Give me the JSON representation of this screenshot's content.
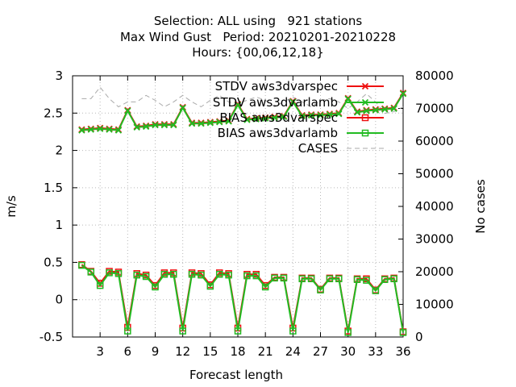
{
  "title_lines": [
    "Selection: ALL using   921 stations",
    "Max Wind Gust   Period: 20210201-20210228",
    "Hours: {00,06,12,18}"
  ],
  "chart_data": {
    "type": "line",
    "xlabel": "Forecast length",
    "ylabel": "m/s",
    "y2label": "No cases",
    "xlim": [
      0,
      36
    ],
    "ylim": [
      -0.5,
      3
    ],
    "y2lim": [
      0,
      80000
    ],
    "xticks": [
      3,
      6,
      9,
      12,
      15,
      18,
      21,
      24,
      27,
      30,
      33,
      36
    ],
    "yticks": [
      -0.5,
      0,
      0.5,
      1,
      1.5,
      2,
      2.5,
      3
    ],
    "y2ticks": [
      0,
      10000,
      20000,
      30000,
      40000,
      50000,
      60000,
      70000,
      80000
    ],
    "grid": true,
    "legend_position": "top-right",
    "x": [
      1,
      2,
      3,
      4,
      5,
      6,
      7,
      8,
      9,
      10,
      11,
      12,
      13,
      14,
      15,
      16,
      17,
      18,
      19,
      20,
      21,
      22,
      23,
      24,
      25,
      26,
      27,
      28,
      29,
      30,
      31,
      32,
      33,
      34,
      35,
      36
    ],
    "series": [
      {
        "name": "STDV aws3dvarspec",
        "axis": "y1",
        "color": "#ee1111",
        "marker": "x",
        "values": [
          2.28,
          2.29,
          2.3,
          2.29,
          2.28,
          2.54,
          2.32,
          2.33,
          2.35,
          2.35,
          2.35,
          2.58,
          2.37,
          2.37,
          2.38,
          2.39,
          2.4,
          2.62,
          2.42,
          2.43,
          2.44,
          2.45,
          2.46,
          2.66,
          2.47,
          2.48,
          2.48,
          2.49,
          2.5,
          2.7,
          2.52,
          2.54,
          2.55,
          2.56,
          2.57,
          2.77
        ]
      },
      {
        "name": "STDV aws3dvarlamb",
        "axis": "y1",
        "color": "#22bb22",
        "marker": "x",
        "values": [
          2.27,
          2.28,
          2.29,
          2.28,
          2.27,
          2.53,
          2.31,
          2.32,
          2.34,
          2.34,
          2.34,
          2.57,
          2.36,
          2.36,
          2.37,
          2.38,
          2.39,
          2.61,
          2.41,
          2.42,
          2.43,
          2.44,
          2.45,
          2.65,
          2.46,
          2.47,
          2.47,
          2.48,
          2.49,
          2.69,
          2.51,
          2.53,
          2.54,
          2.55,
          2.56,
          2.76
        ]
      },
      {
        "name": "BIAS aws3dvarspec",
        "axis": "y1",
        "color": "#ee1111",
        "marker": "square",
        "values": [
          0.47,
          0.38,
          0.22,
          0.38,
          0.37,
          -0.37,
          0.35,
          0.33,
          0.19,
          0.36,
          0.36,
          -0.38,
          0.36,
          0.35,
          0.2,
          0.36,
          0.35,
          -0.38,
          0.34,
          0.34,
          0.19,
          0.3,
          0.3,
          -0.38,
          0.29,
          0.29,
          0.14,
          0.29,
          0.29,
          -0.42,
          0.28,
          0.28,
          0.13,
          0.28,
          0.29,
          -0.43
        ]
      },
      {
        "name": "BIAS aws3dvarlamb",
        "axis": "y1",
        "color": "#22bb22",
        "marker": "square",
        "values": [
          0.46,
          0.37,
          0.19,
          0.36,
          0.35,
          -0.42,
          0.33,
          0.31,
          0.17,
          0.34,
          0.34,
          -0.42,
          0.34,
          0.33,
          0.18,
          0.34,
          0.33,
          -0.42,
          0.32,
          0.32,
          0.17,
          0.29,
          0.29,
          -0.42,
          0.28,
          0.28,
          0.13,
          0.28,
          0.28,
          -0.44,
          0.27,
          0.26,
          0.12,
          0.27,
          0.28,
          -0.44
        ]
      },
      {
        "name": "CASES",
        "axis": "y2",
        "color": "#aaaaaa",
        "marker": "none",
        "dashed": true,
        "values": [
          73000,
          73000,
          76500,
          73000,
          70500,
          72000,
          72000,
          74000,
          72500,
          70500,
          72000,
          74000,
          72000,
          70500,
          72500,
          74000,
          72000,
          71500,
          72500,
          73500,
          72500,
          70500,
          72000,
          73500,
          72000,
          70500,
          72500,
          73000,
          72000,
          70000,
          72000,
          74500,
          72000,
          68500,
          69000,
          70500
        ]
      }
    ]
  }
}
